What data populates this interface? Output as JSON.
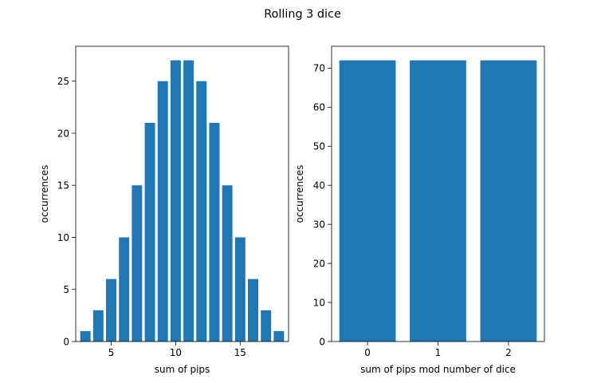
{
  "figure": {
    "title": "Rolling 3 dice"
  },
  "chart_data": [
    {
      "type": "bar",
      "x": [
        3,
        4,
        5,
        6,
        7,
        8,
        9,
        10,
        11,
        12,
        13,
        14,
        15,
        16,
        17,
        18
      ],
      "values": [
        1,
        3,
        6,
        10,
        15,
        21,
        25,
        27,
        27,
        25,
        21,
        15,
        10,
        6,
        3,
        1
      ],
      "xlabel": "sum of pips",
      "ylabel": "occurrences",
      "xlim": [
        2.25,
        18.75
      ],
      "ylim": [
        0,
        28.35
      ],
      "xticks": [
        5,
        10,
        15
      ],
      "yticks": [
        0,
        5,
        10,
        15,
        20,
        25
      ],
      "bar_width": 0.8,
      "color": "#1f77b4",
      "grid": false
    },
    {
      "type": "bar",
      "x": [
        0,
        1,
        2
      ],
      "values": [
        72,
        72,
        72
      ],
      "xlabel": "sum of pips mod number of dice",
      "ylabel": "occurrences",
      "xlim": [
        -0.51,
        2.51
      ],
      "ylim": [
        0,
        75.6
      ],
      "xticks": [
        0,
        1,
        2
      ],
      "yticks": [
        0,
        10,
        20,
        30,
        40,
        50,
        60,
        70
      ],
      "bar_width": 0.8,
      "color": "#1f77b4",
      "grid": false
    }
  ]
}
